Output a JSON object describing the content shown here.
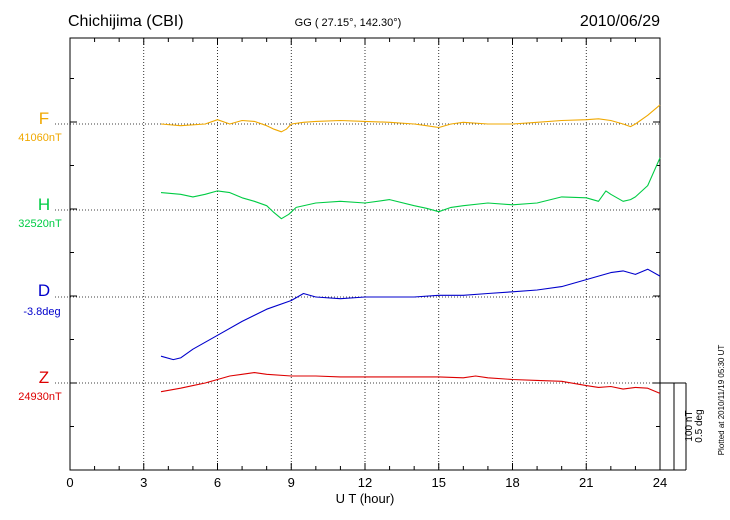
{
  "header": {
    "station": "Chichijima (CBI)",
    "coords": "GG ( 27.15°, 142.30°)",
    "date": "2010/06/29"
  },
  "footer": {
    "plotted": "Plotted at 2010/11/19 05:30 UT",
    "scale_nt": "100 nT",
    "scale_deg": "0.5 deg"
  },
  "chart_data": {
    "type": "line",
    "xlabel": "U T (hour)",
    "xlim": [
      0,
      24
    ],
    "xticks": [
      0,
      3,
      6,
      9,
      12,
      15,
      18,
      21,
      24
    ],
    "grid": true,
    "series": [
      {
        "name": "F",
        "baseline_label": "41060nT",
        "color": "#f0a800",
        "unit": "nT",
        "offset_rank": 0,
        "x": [
          3.7,
          4.5,
          5.5,
          6,
          6.5,
          7,
          7.5,
          8,
          8.3,
          8.6,
          8.8,
          9,
          9.5,
          10,
          11,
          12,
          13,
          14,
          14.5,
          15,
          15.5,
          16,
          17,
          18,
          19,
          20,
          21,
          21.5,
          22,
          22.5,
          22.8,
          23,
          23.5,
          24
        ],
        "y": [
          0,
          -2,
          0,
          5,
          0,
          4,
          3,
          -2,
          -6,
          -9,
          -6,
          0,
          2,
          3,
          4,
          3,
          2,
          0,
          -2,
          -4,
          0,
          2,
          0,
          0,
          2,
          4,
          5,
          6,
          4,
          0,
          -3,
          0,
          10,
          22
        ]
      },
      {
        "name": "H",
        "baseline_label": "32520nT",
        "color": "#00cc44",
        "unit": "nT",
        "offset_rank": 1,
        "x": [
          3.7,
          4.5,
          5,
          5.5,
          6,
          6.5,
          7,
          7.5,
          8,
          8.3,
          8.6,
          8.9,
          9.2,
          10,
          11,
          12,
          13,
          14,
          14.5,
          15,
          15.5,
          16,
          17,
          18,
          19,
          20,
          21,
          21.5,
          21.8,
          22,
          22.5,
          22.8,
          23,
          23.5,
          24
        ],
        "y": [
          20,
          18,
          15,
          18,
          22,
          20,
          14,
          10,
          5,
          -3,
          -10,
          -5,
          3,
          8,
          10,
          8,
          12,
          5,
          2,
          -2,
          3,
          5,
          8,
          6,
          8,
          15,
          14,
          10,
          22,
          18,
          10,
          12,
          15,
          28,
          60
        ]
      },
      {
        "name": "D",
        "baseline_label": "-3.8deg",
        "color": "#0000cc",
        "unit": "deg",
        "offset_rank": 2,
        "x": [
          3.7,
          4.2,
          4.5,
          5,
          6,
          7,
          8,
          9,
          9.5,
          10,
          11,
          12,
          13,
          14,
          15,
          16,
          17,
          18,
          19,
          20,
          20.5,
          21,
          21.5,
          22,
          22.5,
          23,
          23.5,
          24
        ],
        "y": [
          -0.34,
          -0.36,
          -0.35,
          -0.3,
          -0.22,
          -0.14,
          -0.07,
          -0.02,
          0.02,
          0.0,
          -0.01,
          0.0,
          0.0,
          0.0,
          0.01,
          0.01,
          0.02,
          0.03,
          0.04,
          0.06,
          0.08,
          0.1,
          0.12,
          0.14,
          0.15,
          0.13,
          0.16,
          0.12
        ]
      },
      {
        "name": "Z",
        "baseline_label": "24930nT",
        "color": "#dd0000",
        "unit": "nT",
        "offset_rank": 3,
        "x": [
          3.7,
          4.5,
          5,
          5.5,
          6,
          6.5,
          7,
          7.5,
          8,
          9,
          10,
          11,
          12,
          13,
          14,
          15,
          16,
          16.5,
          17,
          18,
          19,
          20,
          21,
          21.5,
          22,
          22.5,
          23,
          23.5,
          24
        ],
        "y": [
          -10,
          -6,
          -3,
          0,
          4,
          8,
          10,
          12,
          10,
          8,
          8,
          7,
          7,
          7,
          7,
          7,
          6,
          8,
          6,
          4,
          3,
          2,
          -3,
          -5,
          -4,
          -7,
          -5,
          -6,
          -12
        ]
      }
    ],
    "scale": {
      "nT_per_bar": 100,
      "deg_per_bar": 0.5
    }
  }
}
